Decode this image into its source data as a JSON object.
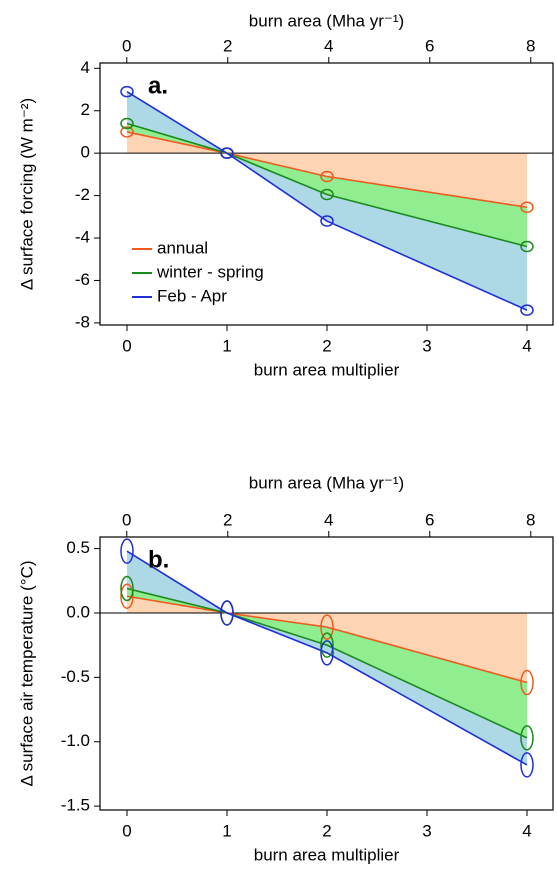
{
  "chart_data": [
    {
      "type": "line",
      "panel_label": "a.",
      "x2label": "burn area (Mha yr⁻¹)",
      "xlabel": "burn area multiplier",
      "ylabel": "Δ surface forcing (W m⁻²)",
      "x": [
        0,
        1,
        2,
        4
      ],
      "xlim": [
        -0.27,
        4.26
      ],
      "xticks": [
        0,
        1,
        2,
        3,
        4
      ],
      "x2lim": [
        -0.53,
        8.44
      ],
      "x2ticks": [
        0,
        2,
        4,
        6,
        8
      ],
      "ylim": [
        -8.1,
        4.25
      ],
      "yticks": [
        -8,
        -6,
        -4,
        -2,
        0,
        2,
        4
      ],
      "legend": "lower left",
      "series": [
        {
          "name": "annual",
          "color": "#f05a1e",
          "fill": "#fdd5b4",
          "values": [
            1.0,
            0,
            -1.1,
            -2.55
          ]
        },
        {
          "name": "winter - spring",
          "color": "#1a8a1a",
          "fill": "#90ee90",
          "values": [
            1.4,
            0,
            -1.95,
            -4.4
          ]
        },
        {
          "name": "Feb - Apr",
          "color": "#1f2fd6",
          "fill": "#add8e6",
          "values": [
            2.9,
            0,
            -3.2,
            -7.4
          ]
        }
      ]
    },
    {
      "type": "line",
      "panel_label": "b.",
      "x2label": "burn area (Mha yr⁻¹)",
      "xlabel": "burn area multiplier",
      "ylabel": "Δ surface air temperature (°C)",
      "x": [
        0,
        1,
        2,
        4
      ],
      "xlim": [
        -0.27,
        4.26
      ],
      "xticks": [
        0,
        1,
        2,
        3,
        4
      ],
      "x2lim": [
        -0.53,
        8.44
      ],
      "x2ticks": [
        0,
        2,
        4,
        6,
        8
      ],
      "ylim": [
        -1.53,
        0.59
      ],
      "yticks": [
        {
          "value": -1.5,
          "label": "-1.5"
        },
        {
          "value": -1,
          "label": "-1.0"
        },
        {
          "value": -0.5,
          "label": "-0.5"
        },
        {
          "value": 0,
          "label": "0.0"
        },
        {
          "value": 0.5,
          "label": "0.5"
        }
      ],
      "series": [
        {
          "color": "#f05a1e",
          "fill": "#fdd5b4",
          "values": [
            0.13,
            0,
            -0.11,
            -0.54
          ]
        },
        {
          "color": "#1a8a1a",
          "fill": "#90ee90",
          "values": [
            0.19,
            0,
            -0.25,
            -0.97
          ]
        },
        {
          "color": "#1f2fd6",
          "fill": "#add8e6",
          "values": [
            0.48,
            0,
            -0.31,
            -1.18
          ]
        }
      ]
    }
  ]
}
